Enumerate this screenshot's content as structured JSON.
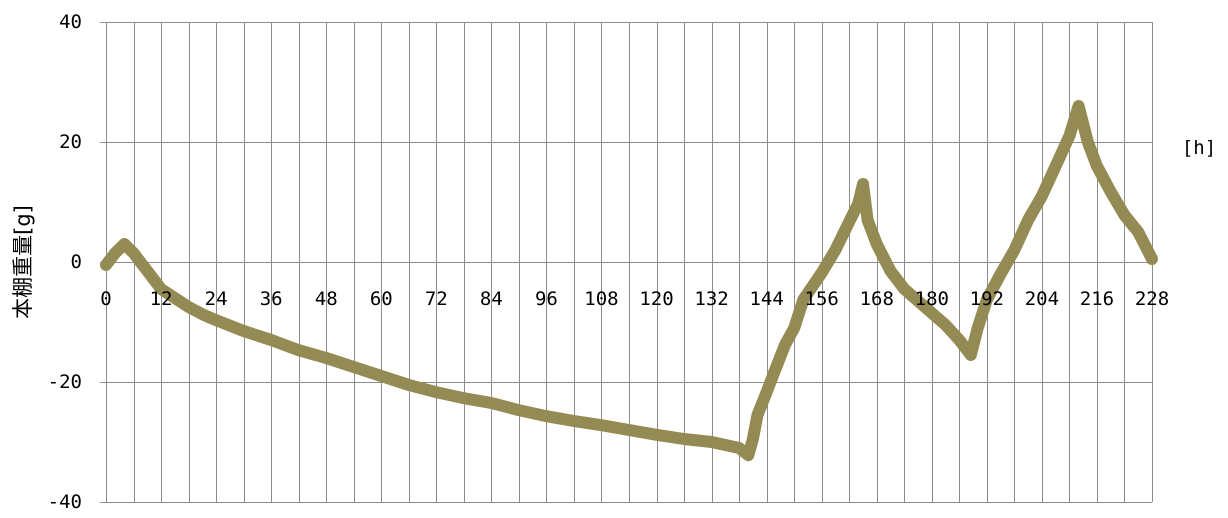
{
  "chart_data": {
    "type": "line",
    "xlabel": "[h]",
    "ylabel": "本棚重量[g]",
    "xlim": [
      0,
      228
    ],
    "ylim": [
      -40,
      40
    ],
    "x_grid_step": 6,
    "grid": true,
    "x_ticks": [
      {
        "value": 0,
        "label": "0"
      },
      {
        "value": 12,
        "label": "12"
      },
      {
        "value": 24,
        "label": "24"
      },
      {
        "value": 36,
        "label": "36"
      },
      {
        "value": 48,
        "label": "48"
      },
      {
        "value": 60,
        "label": "60"
      },
      {
        "value": 72,
        "label": "72"
      },
      {
        "value": 84,
        "label": "84"
      },
      {
        "value": 96,
        "label": "96"
      },
      {
        "value": 108,
        "label": "108"
      },
      {
        "value": 120,
        "label": "120"
      },
      {
        "value": 132,
        "label": "132"
      },
      {
        "value": 144,
        "label": "144"
      },
      {
        "value": 156,
        "label": "156"
      },
      {
        "value": 168,
        "label": "168"
      },
      {
        "value": 180,
        "label": "180"
      },
      {
        "value": 192,
        "label": "192"
      },
      {
        "value": 204,
        "label": "204"
      },
      {
        "value": 216,
        "label": "216"
      },
      {
        "value": 228,
        "label": "228"
      }
    ],
    "y_ticks": [
      {
        "value": 40,
        "label": "40"
      },
      {
        "value": 20,
        "label": "20"
      },
      {
        "value": 0,
        "label": "0"
      },
      {
        "value": -20,
        "label": "-20"
      },
      {
        "value": -40,
        "label": "-40"
      }
    ],
    "series": [
      {
        "color": "#948A54",
        "x": [
          0,
          2,
          4,
          6,
          9,
          12,
          15,
          18,
          21,
          24,
          30,
          36,
          42,
          48,
          54,
          60,
          66,
          72,
          78,
          84,
          90,
          96,
          102,
          108,
          114,
          120,
          126,
          132,
          138,
          140,
          141,
          142,
          144,
          146,
          148,
          150,
          152,
          156,
          159,
          162,
          164,
          165,
          166,
          168,
          171,
          174,
          177,
          180,
          183,
          186,
          188.5,
          190,
          192,
          195,
          198,
          201,
          204,
          207,
          210,
          212,
          214,
          216,
          219,
          222,
          225,
          228
        ],
        "y": [
          -0.5,
          1.5,
          3,
          1.5,
          -1.5,
          -4.5,
          -6,
          -7.5,
          -8.7,
          -9.7,
          -11.5,
          -13,
          -14.7,
          -16,
          -17.5,
          -19,
          -20.5,
          -21.7,
          -22.7,
          -23.5,
          -24.7,
          -25.7,
          -26.5,
          -27.2,
          -28,
          -28.8,
          -29.5,
          -30,
          -31,
          -32.2,
          -29.5,
          -25.5,
          -21.7,
          -17.7,
          -13.8,
          -11,
          -6.3,
          -1.8,
          2,
          6.7,
          9.8,
          13,
          7,
          3,
          -1.5,
          -4.5,
          -6.5,
          -8.5,
          -10.5,
          -13,
          -15.5,
          -11,
          -6.3,
          -2,
          2,
          7,
          11,
          16,
          21,
          26,
          20,
          16,
          11.7,
          7.8,
          5,
          0.5
        ]
      }
    ]
  },
  "colors": {
    "grid": "#8C8C8C",
    "tick": "#8C8C8C"
  }
}
